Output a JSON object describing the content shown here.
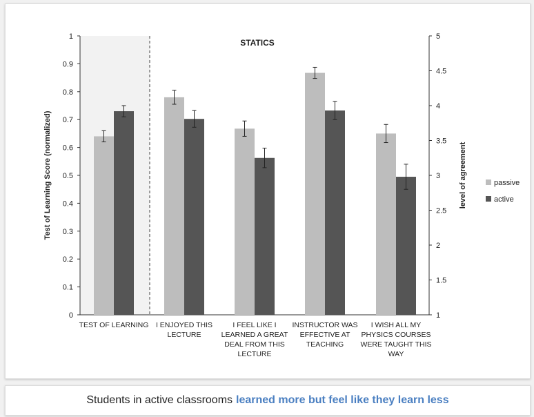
{
  "chart_data": {
    "type": "bar",
    "title": "STATICS",
    "ylabel_left": "Test of Learning Score (normalized)",
    "ylabel_right": "level of agreement",
    "ylim_left": [
      0,
      1
    ],
    "ylim_right": [
      1,
      5
    ],
    "left_ticks": [
      "0",
      "0.1",
      "0.2",
      "0.3",
      "0.4",
      "0.5",
      "0.6",
      "0.7",
      "0.8",
      "0.9",
      "1"
    ],
    "right_ticks": [
      "1",
      "1.5",
      "2",
      "2.5",
      "3",
      "3.5",
      "4",
      "4.5",
      "5"
    ],
    "categories": [
      {
        "lines": [
          "TEST OF LEARNING"
        ],
        "axis": "left"
      },
      {
        "lines": [
          "I ENJOYED THIS",
          "LECTURE"
        ],
        "axis": "right"
      },
      {
        "lines": [
          "I FEEL LIKE I",
          "LEARNED A GREAT",
          "DEAL FROM THIS",
          "LECTURE"
        ],
        "axis": "right"
      },
      {
        "lines": [
          "INSTRUCTOR WAS",
          "EFFECTIVE AT",
          "TEACHING"
        ],
        "axis": "right"
      },
      {
        "lines": [
          "I WISH ALL MY",
          "PHYSICS COURSES",
          "WERE TAUGHT THIS",
          "WAY"
        ],
        "axis": "right"
      }
    ],
    "series": [
      {
        "name": "passive",
        "color": "#bdbdbd",
        "values": [
          0.64,
          4.12,
          3.67,
          4.47,
          3.6
        ],
        "errors": [
          0.02,
          0.1,
          0.11,
          0.08,
          0.13
        ]
      },
      {
        "name": "active",
        "color": "#555555",
        "values": [
          0.73,
          3.81,
          3.25,
          3.93,
          2.98
        ],
        "errors": [
          0.02,
          0.12,
          0.14,
          0.13,
          0.18
        ]
      }
    ],
    "legend_position": "right",
    "shaded_category": 0
  },
  "caption": {
    "text": "Students in active classrooms",
    "highlight": "learned more but feel like they learn less",
    "highlight_color": "#4a7fc1"
  }
}
